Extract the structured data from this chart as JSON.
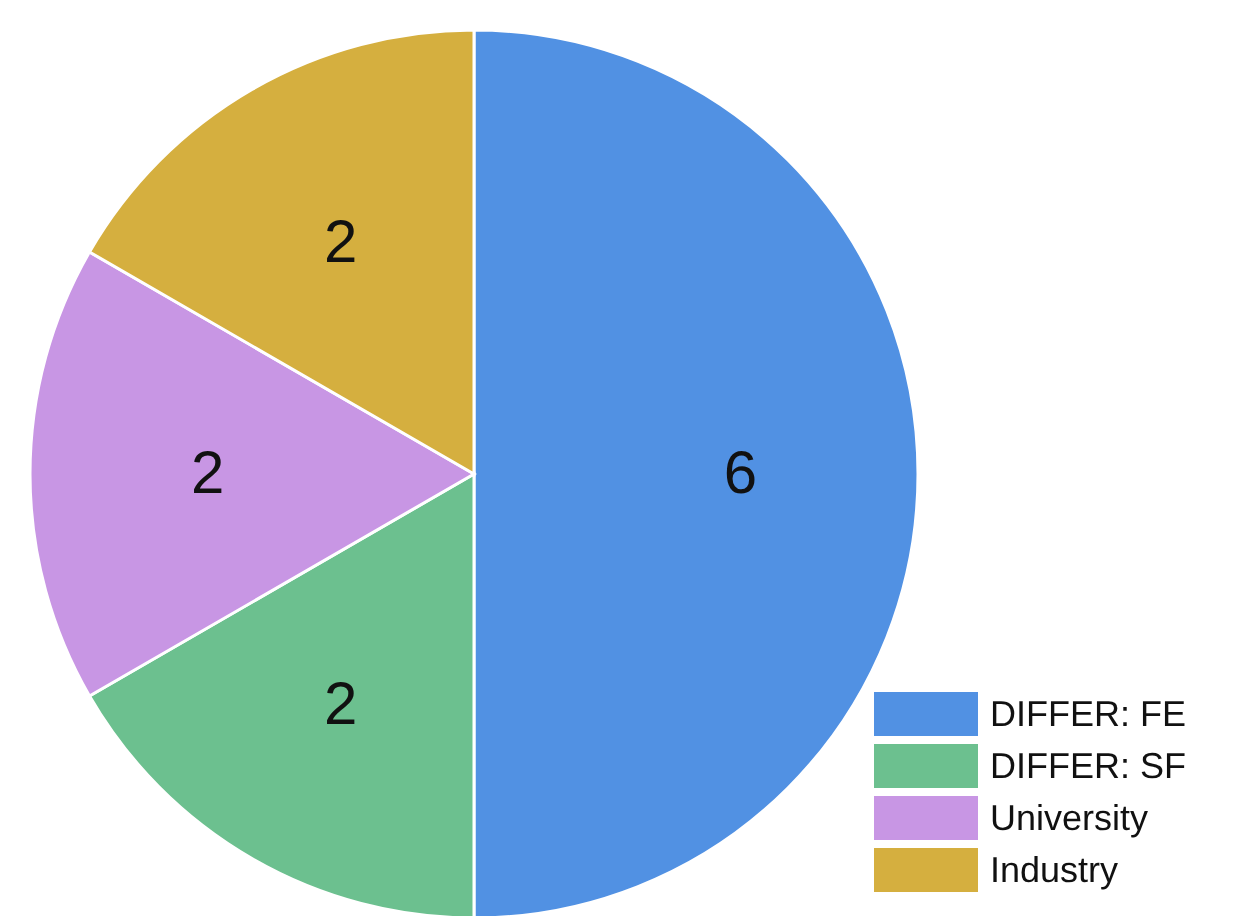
{
  "chart_data": {
    "type": "pie",
    "categories": [
      "DIFFER: FE",
      "DIFFER: SF",
      "University",
      "Industry"
    ],
    "values": [
      6,
      2,
      2,
      2
    ],
    "colors": [
      "#5191e3",
      "#6cc08f",
      "#c896e4",
      "#d5af3f"
    ],
    "data_labels": true,
    "legend": "bottom right"
  }
}
